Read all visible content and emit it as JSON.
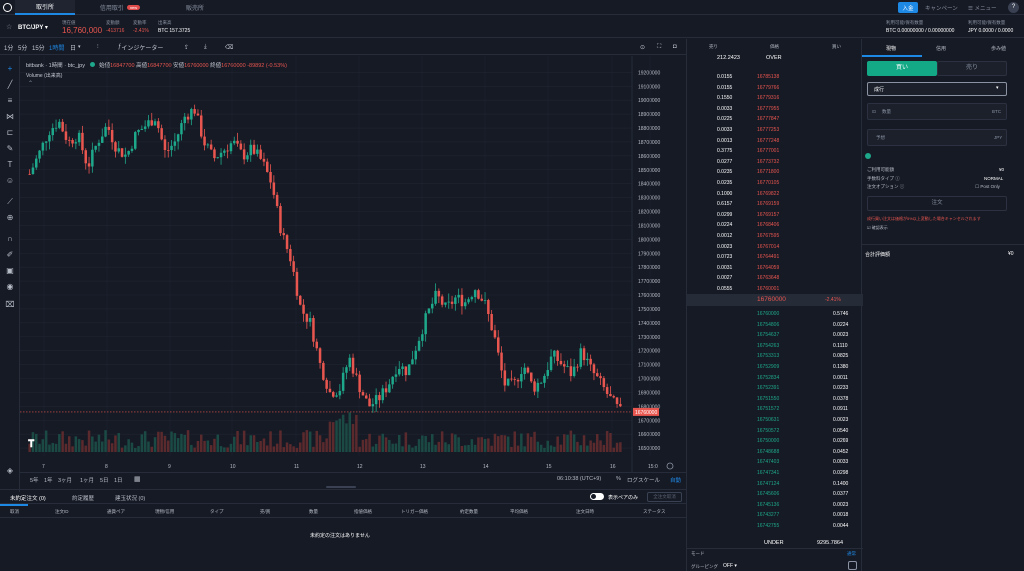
{
  "nav": {
    "tabs": [
      "取引所",
      "信用取引",
      "販売所"
    ],
    "new_badge": "new",
    "deposit": "入金",
    "campaign": "キャンペーン",
    "menu": "メニュー",
    "help": "?"
  },
  "info": {
    "pair": "BTC/JPY",
    "last_label": "現在値",
    "last": "16,760,000",
    "change_label": "変動額",
    "change": "-413716",
    "rate_label": "変動率",
    "rate": "-2.41%",
    "volume_label": "出来高",
    "volume": "BTC 157.3725"
  },
  "balance": {
    "btc_label": "利用可能/保有数量",
    "btc": "BTC 0.00000000 / 0.00000000",
    "jpy_label": "利用可能/保有数量",
    "jpy": "JPY 0.0000 / 0.0000"
  },
  "toolbar": {
    "intervals": [
      "1分",
      "5分",
      "15分",
      "1時間",
      "日"
    ],
    "indicator": "インジケーター"
  },
  "chart": {
    "symbol": "bitbank · 1時間 · btc_jpy",
    "ohlc_o_label": "始値",
    "ohlc_o": "16847700",
    "ohlc_h_label": "高値",
    "ohlc_h": "16847700",
    "ohlc_l_label": "安値",
    "ohlc_l": "16760000",
    "ohlc_c_label": "終値",
    "ohlc_c": "16760000",
    "ohlc_chg": "-89892 (-0.53%)",
    "volume_label": "Volume (出来高)",
    "current_tag": "16760000",
    "time_ticks": [
      "7",
      "8",
      "9",
      "10",
      "11",
      "12",
      "13",
      "14",
      "15",
      "16",
      "15:0"
    ]
  },
  "chart_data": {
    "type": "candlestick",
    "price_ticks": [
      "19200000",
      "19100000",
      "19000000",
      "18900000",
      "18800000",
      "18700000",
      "18600000",
      "18500000",
      "18400000",
      "18300000",
      "18200000",
      "18100000",
      "18000000",
      "17900000",
      "17800000",
      "17700000",
      "17600000",
      "17500000",
      "17400000",
      "17300000",
      "17200000",
      "17100000",
      "17000000",
      "16900000",
      "16800000",
      "16700000",
      "16600000",
      "16500000"
    ],
    "close_path": [
      18470000,
      18620000,
      18780000,
      18850000,
      18700000,
      18750000,
      18520000,
      18700000,
      18820000,
      18650000,
      18600000,
      18760000,
      18820000,
      18880000,
      18620000,
      18700000,
      18880000,
      18940000,
      18700000,
      18580000,
      18640000,
      18700000,
      18600000,
      18650000,
      18560000,
      18400000,
      18050000,
      17850000,
      17500000,
      17400000,
      17100000,
      16900000,
      16920000,
      17150000,
      16950000,
      16800000,
      16850000,
      16950000,
      17100000,
      17050000,
      17250000,
      17450000,
      17600000,
      17500000,
      17580000,
      17550000,
      17650000,
      17540000,
      17300000,
      16960000,
      16950000,
      17100000,
      16930000,
      17000000,
      17170000,
      17100000,
      17030000,
      17200000,
      17060000,
      16960000,
      16850000,
      16760000
    ]
  },
  "bottom": {
    "ranges": [
      "5年",
      "1年",
      "3ヶ月",
      "1ヶ月",
      "5日",
      "1日"
    ],
    "clock": "06:10:38 (UTC+9)",
    "pct": "%",
    "log": "ログスケール",
    "auto": "自動"
  },
  "orders": {
    "tabs": [
      "未約定注文 (0)",
      "約定履歴",
      "建玉状況 (0)"
    ],
    "toggle_label": "表示ペアのみ",
    "cancel_all": "全注文取消",
    "headers": [
      "取消",
      "注文ID",
      "通貨ペア",
      "現物/信用",
      "タイプ",
      "売/買",
      "数量",
      "指値価格",
      "トリガー価格",
      "約定数量",
      "平均価格",
      "注文日時",
      "ステータス"
    ],
    "empty": "未約定の注文はありません"
  },
  "book": {
    "headers": [
      "売り",
      "価格",
      "買い"
    ],
    "top_size": "212.2423",
    "over": "OVER",
    "asks": [
      [
        "0.0155",
        "16785138"
      ],
      [
        "0.0155",
        "16779766"
      ],
      [
        "0.1550",
        "16779316"
      ],
      [
        "0.0033",
        "16777955"
      ],
      [
        "0.0225",
        "16777847"
      ],
      [
        "0.0033",
        "16777253"
      ],
      [
        "0.0013",
        "16777248"
      ],
      [
        "0.3775",
        "16777001"
      ],
      [
        "0.0277",
        "16773732"
      ],
      [
        "0.0235",
        "16771800"
      ],
      [
        "0.0235",
        "16770105"
      ],
      [
        "0.1000",
        "16769822"
      ],
      [
        "0.6157",
        "16769159"
      ],
      [
        "0.0299",
        "16769157"
      ],
      [
        "0.0224",
        "16768406"
      ],
      [
        "0.0012",
        "16767595"
      ],
      [
        "0.0023",
        "16767014"
      ],
      [
        "0.0723",
        "16764491"
      ],
      [
        "0.0031",
        "16764059"
      ],
      [
        "0.0027",
        "16763648"
      ],
      [
        "0.0555",
        "16760001"
      ]
    ],
    "mid_price": "16760000",
    "mid_change": "-2.41%",
    "bids": [
      [
        "16760000",
        "0.5746"
      ],
      [
        "16754806",
        "0.0224"
      ],
      [
        "16754637",
        "0.0023"
      ],
      [
        "16754263",
        "0.1110"
      ],
      [
        "16753313",
        "0.0825"
      ],
      [
        "16752909",
        "0.1380"
      ],
      [
        "16752834",
        "0.0011"
      ],
      [
        "16752391",
        "0.0233"
      ],
      [
        "16751550",
        "0.0378"
      ],
      [
        "16751572",
        "0.0911"
      ],
      [
        "16750631",
        "0.0023"
      ],
      [
        "16750572",
        "0.0540"
      ],
      [
        "16750000",
        "0.0269"
      ],
      [
        "16748688",
        "0.0452"
      ],
      [
        "16747403",
        "0.0033"
      ],
      [
        "16747341",
        "0.0298"
      ],
      [
        "16747124",
        "0.1400"
      ],
      [
        "16745606",
        "0.0377"
      ],
      [
        "16745136",
        "0.0023"
      ],
      [
        "16743277",
        "0.0018"
      ],
      [
        "16742755",
        "0.0044"
      ]
    ],
    "under": "UNDER",
    "bottom_size": "9295.7864",
    "mode_label": "モード",
    "mode": "通常",
    "grouping": "グルーピング",
    "grouping_val": "OFF"
  },
  "panel": {
    "tabs": [
      "現物",
      "信用",
      "歩み値"
    ],
    "buy": "買い",
    "sell": "売り",
    "order_type": "成行",
    "qty_label": "数量",
    "qty_unit": "BTC",
    "price_label": "予想",
    "price_unit": "JPY",
    "available_label": "ご利用可能額",
    "available": "¥0",
    "fee_label": "手数料タイプ",
    "fee": "NORMAL",
    "option_label": "注文オプション",
    "post_only": "Post Only",
    "submit": "注文",
    "warning": "成行買い注文は価格が5%以上変動した場合キャンセルされます",
    "confirm": "確認表示",
    "total_label": "合計評価額",
    "total": "¥0"
  }
}
